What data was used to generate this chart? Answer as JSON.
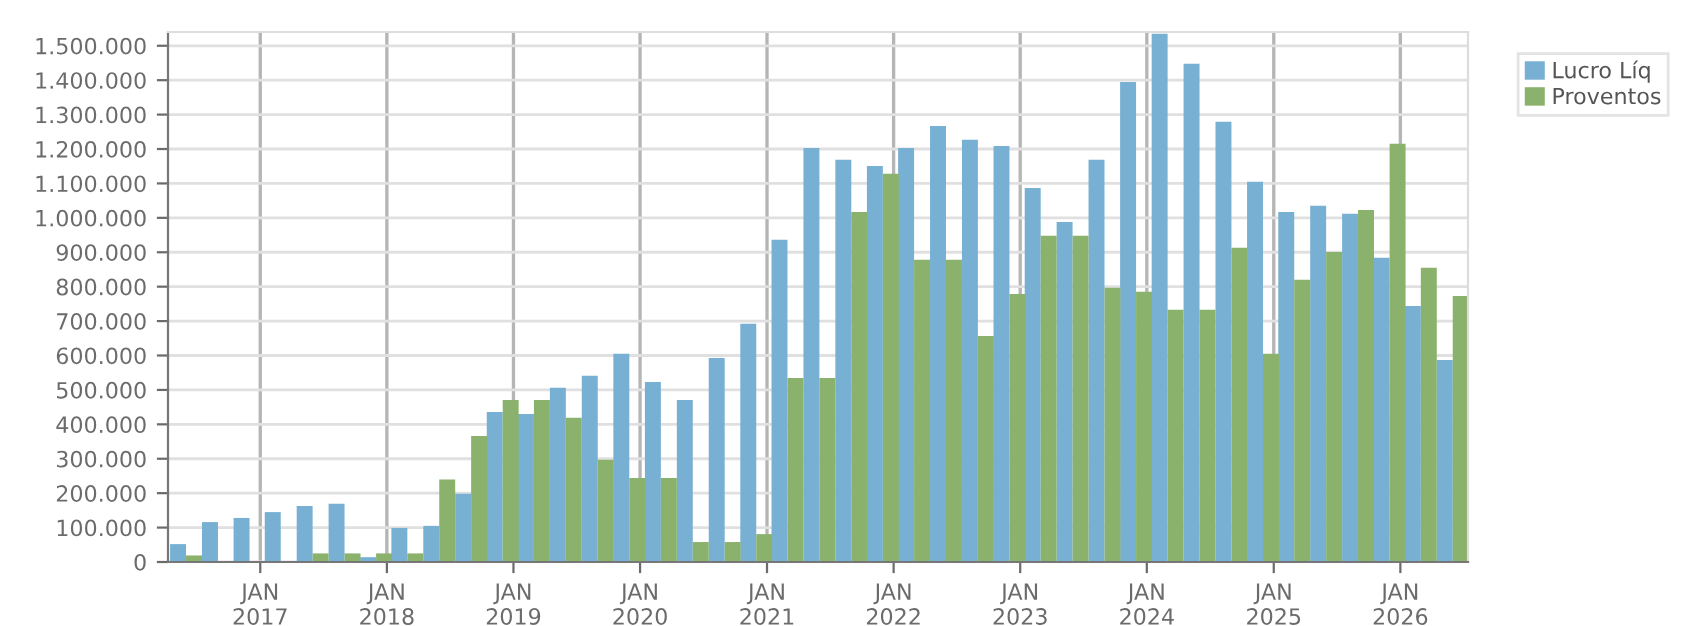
{
  "chart_data": {
    "type": "bar",
    "x": [
      "2016-06",
      "2016-09",
      "2016-12",
      "2017-03",
      "2017-06",
      "2017-09",
      "2017-12",
      "2018-03",
      "2018-06",
      "2018-09",
      "2018-12",
      "2019-03",
      "2019-06",
      "2019-09",
      "2019-12",
      "2020-03",
      "2020-06",
      "2020-09",
      "2020-12",
      "2021-03",
      "2021-06",
      "2021-09",
      "2021-12",
      "2022-03",
      "2022-06",
      "2022-09",
      "2022-12",
      "2023-03",
      "2023-06",
      "2023-09",
      "2023-12",
      "2024-03",
      "2024-06",
      "2024-09",
      "2024-12",
      "2025-03",
      "2025-06",
      "2025-09",
      "2025-12",
      "2026-03",
      "2026-06"
    ],
    "series": [
      {
        "name": "Lucro Líq",
        "color": "#78b0d4",
        "values": [
          52000,
          116000,
          128000,
          145000,
          163000,
          169000,
          14000,
          99000,
          105000,
          198000,
          436000,
          430000,
          506000,
          541000,
          605000,
          523000,
          471000,
          593000,
          692000,
          936000,
          1203000,
          1169000,
          1151000,
          1203000,
          1267000,
          1227000,
          1209000,
          1087000,
          988000,
          1169000,
          1395000,
          1535000,
          1448000,
          1279000,
          1105000,
          1017000,
          1035000,
          1012000,
          884000,
          744000,
          587000
        ]
      },
      {
        "name": "Proventos",
        "color": "#8ab26c",
        "values": [
          19000,
          0,
          0,
          0,
          25000,
          25000,
          25000,
          25000,
          240000,
          366000,
          471000,
          471000,
          419000,
          297000,
          244000,
          244000,
          58000,
          58000,
          81000,
          535000,
          535000,
          1017000,
          1128000,
          878000,
          878000,
          657000,
          779000,
          948000,
          948000,
          797000,
          785000,
          733000,
          733000,
          913000,
          605000,
          820000,
          901000,
          1023000,
          1215000,
          855000,
          773000
        ]
      }
    ],
    "xlim": [
      "2016-04-10",
      "2026-07-15"
    ],
    "xticks": [
      {
        "value": "2017-01-01",
        "label": "JAN\n2017"
      },
      {
        "value": "2018-01-01",
        "label": "JAN\n2018"
      },
      {
        "value": "2019-01-01",
        "label": "JAN\n2019"
      },
      {
        "value": "2020-01-01",
        "label": "JAN\n2020"
      },
      {
        "value": "2021-01-01",
        "label": "JAN\n2021"
      },
      {
        "value": "2022-01-01",
        "label": "JAN\n2022"
      },
      {
        "value": "2023-01-01",
        "label": "JAN\n2023"
      },
      {
        "value": "2024-01-01",
        "label": "JAN\n2024"
      },
      {
        "value": "2025-01-01",
        "label": "JAN\n2025"
      },
      {
        "value": "2026-01-01",
        "label": "JAN\n2026"
      }
    ],
    "ylim": [
      0,
      1540000
    ],
    "yticks": [
      0,
      {
        "value": 100000,
        "label": "100.000"
      },
      {
        "value": 200000,
        "label": "200.000"
      },
      {
        "value": 300000,
        "label": "300.000"
      },
      {
        "value": 400000,
        "label": "400.000"
      },
      {
        "value": 500000,
        "label": "500.000"
      },
      {
        "value": 600000,
        "label": "600.000"
      },
      {
        "value": 700000,
        "label": "700.000"
      },
      {
        "value": 800000,
        "label": "800.000"
      },
      {
        "value": 900000,
        "label": "900.000"
      },
      {
        "value": 1000000,
        "label": "1.000.000"
      },
      {
        "value": 1100000,
        "label": "1.100.000"
      },
      {
        "value": 1200000,
        "label": "1.200.000"
      },
      {
        "value": 1300000,
        "label": "1.300.000"
      },
      {
        "value": 1400000,
        "label": "1.400.000"
      },
      {
        "value": 1500000,
        "label": "1.500.000"
      }
    ],
    "grid": true,
    "legend": "top right"
  }
}
